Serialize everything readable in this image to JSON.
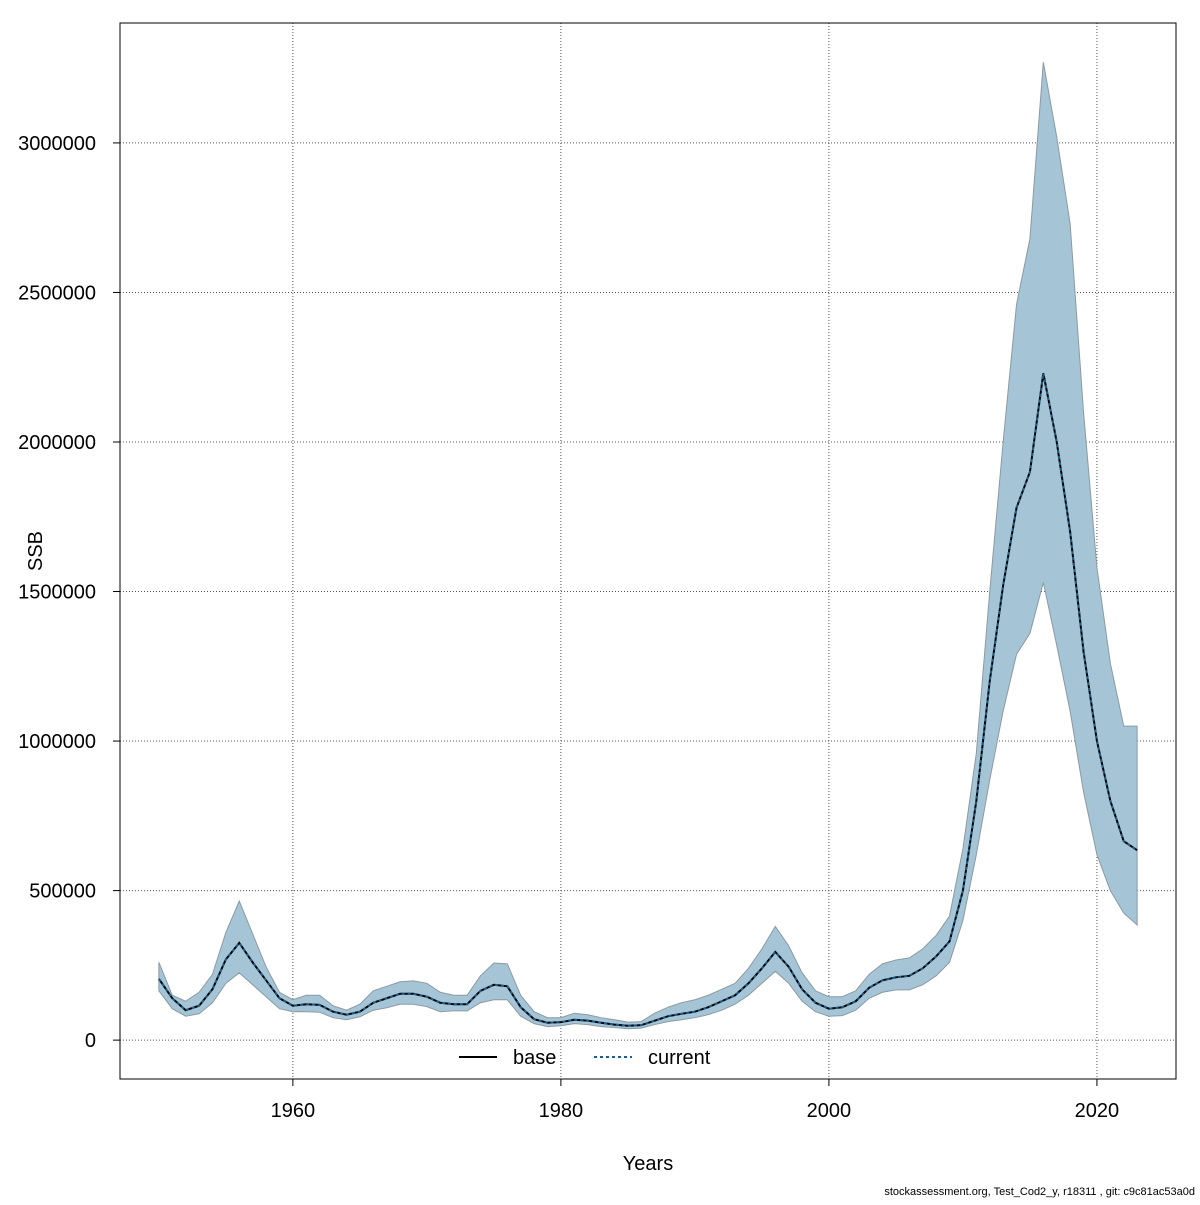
{
  "chart_data": {
    "type": "line",
    "xlabel": "Years",
    "ylabel": "SSB",
    "footer": "stockassessment.org, Test_Cod2_y, r18311 , git: c9c81ac53a0d",
    "x": [
      1950,
      1951,
      1952,
      1953,
      1954,
      1955,
      1956,
      1957,
      1958,
      1959,
      1960,
      1961,
      1962,
      1963,
      1964,
      1965,
      1966,
      1967,
      1968,
      1969,
      1970,
      1971,
      1972,
      1973,
      1974,
      1975,
      1976,
      1977,
      1978,
      1979,
      1980,
      1981,
      1982,
      1983,
      1984,
      1985,
      1986,
      1987,
      1988,
      1989,
      1990,
      1991,
      1992,
      1993,
      1994,
      1995,
      1996,
      1997,
      1998,
      1999,
      2000,
      2001,
      2002,
      2003,
      2004,
      2005,
      2006,
      2007,
      2008,
      2009,
      2010,
      2011,
      2012,
      2013,
      2014,
      2015,
      2016,
      2017,
      2018,
      2019,
      2020,
      2021,
      2022,
      2023
    ],
    "series": [
      {
        "name": "base",
        "color": "#000000",
        "style": "solid",
        "values": [
          205000,
          140000,
          100000,
          115000,
          170000,
          270000,
          325000,
          260000,
          200000,
          140000,
          115000,
          120000,
          118000,
          95000,
          85000,
          95000,
          125000,
          140000,
          155000,
          155000,
          145000,
          125000,
          120000,
          120000,
          165000,
          185000,
          180000,
          110000,
          70000,
          58000,
          60000,
          68000,
          65000,
          58000,
          52000,
          48000,
          50000,
          65000,
          80000,
          88000,
          95000,
          110000,
          130000,
          150000,
          190000,
          240000,
          295000,
          245000,
          170000,
          125000,
          105000,
          110000,
          130000,
          175000,
          200000,
          210000,
          215000,
          240000,
          280000,
          330000,
          500000,
          800000,
          1200000,
          1520000,
          1780000,
          1900000,
          2230000,
          2000000,
          1700000,
          1300000,
          1000000,
          800000,
          665000,
          635000
        ]
      },
      {
        "name": "current",
        "color": "#1f5f8b",
        "style": "dotted",
        "values": [
          205000,
          140000,
          100000,
          115000,
          170000,
          270000,
          325000,
          260000,
          200000,
          140000,
          115000,
          120000,
          118000,
          95000,
          85000,
          95000,
          125000,
          140000,
          155000,
          155000,
          145000,
          125000,
          120000,
          120000,
          165000,
          185000,
          180000,
          110000,
          70000,
          58000,
          60000,
          68000,
          65000,
          58000,
          52000,
          48000,
          50000,
          65000,
          80000,
          88000,
          95000,
          110000,
          130000,
          150000,
          190000,
          240000,
          295000,
          245000,
          170000,
          125000,
          105000,
          110000,
          130000,
          175000,
          200000,
          210000,
          215000,
          240000,
          280000,
          330000,
          500000,
          800000,
          1200000,
          1520000,
          1780000,
          1900000,
          2230000,
          2000000,
          1700000,
          1300000,
          1000000,
          800000,
          665000,
          635000
        ]
      }
    ],
    "band": {
      "color": "#a5c5d6",
      "lower": [
        165000,
        105000,
        80000,
        88000,
        125000,
        190000,
        225000,
        185000,
        145000,
        105000,
        95000,
        95000,
        93000,
        75000,
        68000,
        78000,
        100000,
        108000,
        120000,
        120000,
        112000,
        95000,
        98000,
        98000,
        125000,
        135000,
        135000,
        80000,
        55000,
        45000,
        48000,
        55000,
        52000,
        45000,
        42000,
        38000,
        40000,
        52000,
        62000,
        68000,
        75000,
        85000,
        100000,
        120000,
        150000,
        190000,
        230000,
        190000,
        130000,
        95000,
        80000,
        82000,
        100000,
        140000,
        160000,
        168000,
        168000,
        185000,
        215000,
        260000,
        400000,
        620000,
        870000,
        1100000,
        1290000,
        1360000,
        1530000,
        1320000,
        1100000,
        830000,
        620000,
        500000,
        425000,
        385000
      ],
      "upper": [
        260000,
        150000,
        130000,
        160000,
        220000,
        360000,
        465000,
        355000,
        245000,
        160000,
        135000,
        150000,
        150000,
        115000,
        100000,
        120000,
        165000,
        180000,
        195000,
        198000,
        190000,
        160000,
        150000,
        150000,
        215000,
        258000,
        255000,
        150000,
        95000,
        75000,
        75000,
        90000,
        85000,
        75000,
        68000,
        60000,
        62000,
        90000,
        110000,
        125000,
        135000,
        150000,
        170000,
        190000,
        240000,
        305000,
        380000,
        315000,
        225000,
        165000,
        145000,
        145000,
        165000,
        220000,
        255000,
        268000,
        275000,
        305000,
        350000,
        415000,
        640000,
        960000,
        1500000,
        2000000,
        2460000,
        2680000,
        3270000,
        3020000,
        2730000,
        2100000,
        1580000,
        1260000,
        1050000,
        1050000
      ]
    },
    "xlim": [
      1947.1,
      2025.9
    ],
    "ylim": [
      -130000,
      3401000
    ],
    "xticks": [
      1960,
      1980,
      2000,
      2020
    ],
    "yticks": [
      0,
      500000,
      1000000,
      1500000,
      2000000,
      2500000,
      3000000
    ],
    "grid": true,
    "legend": "bottom"
  }
}
